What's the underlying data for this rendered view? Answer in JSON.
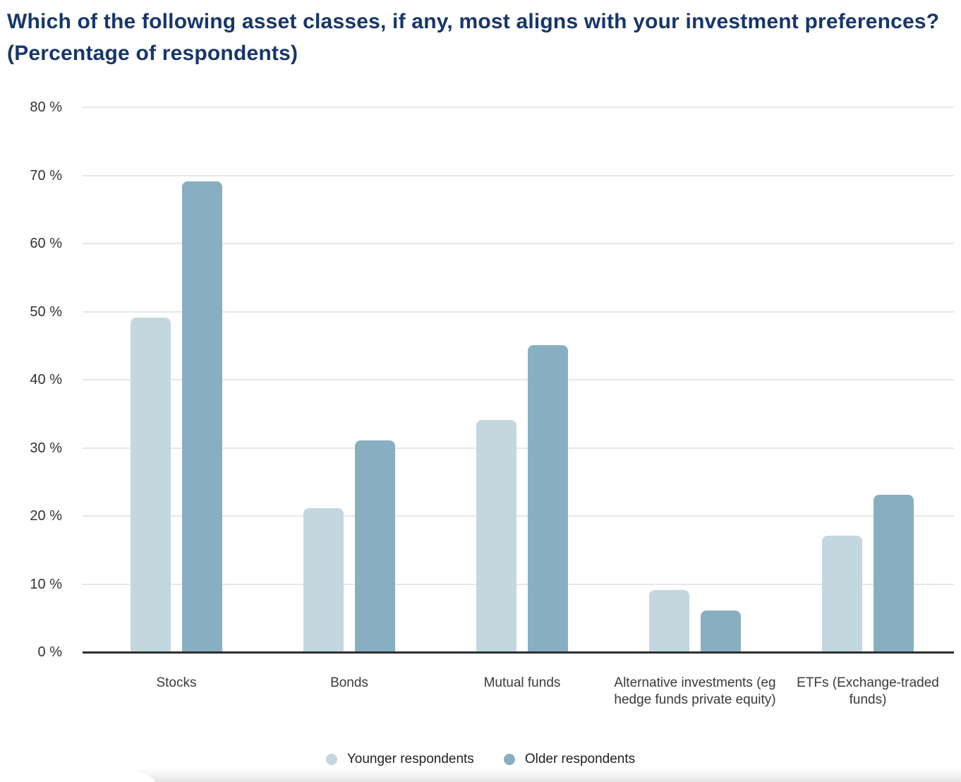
{
  "chart_data": {
    "type": "bar",
    "title": "Which of the following asset classes, if any, most aligns with your investment preferences? (Percentage of respondents)",
    "title_lines": [
      "Which of the following asset classes, if any, most aligns with your investment preferences?",
      "(Percentage of respondents)"
    ],
    "categories": [
      "Stocks",
      "Bonds",
      "Mutual funds",
      "Alternative investments (eg hedge funds private equity)",
      "ETFs (Exchange-traded funds)"
    ],
    "series": [
      {
        "name": "Younger respondents",
        "color": "#c3d7df",
        "values": [
          49,
          21,
          34,
          9,
          17
        ]
      },
      {
        "name": "Older respondents",
        "color": "#88afc1",
        "values": [
          69,
          31,
          45,
          6,
          23
        ]
      }
    ],
    "ylim": [
      0,
      80
    ],
    "ytick_step": 10,
    "ytick_labels": [
      "0 %",
      "10 %",
      "20 %",
      "30 %",
      "40 %",
      "50 %",
      "60 %",
      "70 %",
      "80 %"
    ],
    "xlabel": "",
    "ylabel": "",
    "grid": true,
    "legend_position": "bottom"
  },
  "colors": {
    "title": "#17366b",
    "tick_label": "#333333",
    "category_label": "#3a3a3a",
    "gridline": "#e7e7e7",
    "axis_line": "#2e2e2e",
    "series_younger": "#c3d7df",
    "series_older": "#88afc1"
  }
}
